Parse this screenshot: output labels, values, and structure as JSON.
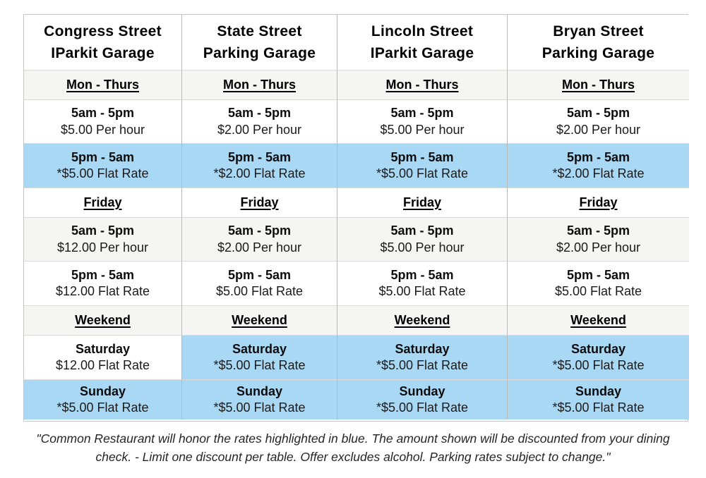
{
  "colors": {
    "highlight_blue": "#a9d8f5",
    "row_gray": "#f5f5f4",
    "border_gray": "#c6c6c6"
  },
  "table": {
    "rows": [
      {
        "type": "garage-header",
        "cells": [
          {
            "line1": "Congress Street",
            "line2": "IParkit Garage"
          },
          {
            "line1": "State Street",
            "line2": "Parking Garage"
          },
          {
            "line1": "Lincoln Street",
            "line2": "IParkit Garage"
          },
          {
            "line1": "Bryan Street",
            "line2": "Parking Garage"
          }
        ]
      },
      {
        "type": "section",
        "cells": [
          {
            "label": "Mon - Thurs"
          },
          {
            "label": "Mon - Thurs"
          },
          {
            "label": "Mon - Thurs"
          },
          {
            "label": "Mon - Thurs"
          }
        ]
      },
      {
        "type": "data",
        "cells": [
          {
            "line1": "5am - 5pm",
            "line2": "$5.00 Per hour"
          },
          {
            "line1": "5am - 5pm",
            "line2": "$2.00 Per hour"
          },
          {
            "line1": "5am - 5pm",
            "line2": "$5.00 Per hour"
          },
          {
            "line1": "5am - 5pm",
            "line2": "$2.00 Per hour"
          }
        ]
      },
      {
        "type": "data-highlighted",
        "cells": [
          {
            "line1": "5pm - 5am",
            "line2": "*$5.00 Flat Rate"
          },
          {
            "line1": "5pm - 5am",
            "line2": "*$2.00 Flat Rate"
          },
          {
            "line1": "5pm - 5am",
            "line2": "*$5.00 Flat Rate"
          },
          {
            "line1": "5pm - 5am",
            "line2": "*$2.00 Flat Rate"
          }
        ]
      },
      {
        "type": "section",
        "cells": [
          {
            "label": "Friday"
          },
          {
            "label": "Friday"
          },
          {
            "label": "Friday"
          },
          {
            "label": "Friday"
          }
        ]
      },
      {
        "type": "data",
        "cells": [
          {
            "line1": "5am - 5pm",
            "line2": "$12.00 Per hour"
          },
          {
            "line1": "5am - 5pm",
            "line2": "$2.00 Per hour"
          },
          {
            "line1": "5am - 5pm",
            "line2": "$5.00 Per hour"
          },
          {
            "line1": "5am - 5pm",
            "line2": "$2.00 Per hour"
          }
        ]
      },
      {
        "type": "data",
        "cells": [
          {
            "line1": "5pm - 5am",
            "line2": "$12.00 Flat Rate"
          },
          {
            "line1": "5pm - 5am",
            "line2": "$5.00 Flat Rate"
          },
          {
            "line1": "5pm - 5am",
            "line2": "$5.00 Flat Rate"
          },
          {
            "line1": "5pm - 5am",
            "line2": "$5.00 Flat Rate"
          }
        ]
      },
      {
        "type": "section",
        "cells": [
          {
            "label": "Weekend"
          },
          {
            "label": "Weekend"
          },
          {
            "label": "Weekend"
          },
          {
            "label": "Weekend"
          }
        ]
      },
      {
        "type": "data-mixed",
        "cells": [
          {
            "line1": "Saturday",
            "line2": "$12.00 Flat Rate"
          },
          {
            "line1": "Saturday",
            "line2": "*$5.00 Flat Rate"
          },
          {
            "line1": "Saturday",
            "line2": "*$5.00 Flat Rate"
          },
          {
            "line1": "Saturday",
            "line2": "*$5.00 Flat Rate"
          }
        ]
      },
      {
        "type": "data-highlighted",
        "cells": [
          {
            "line1": "Sunday",
            "line2": "*$5.00 Flat Rate"
          },
          {
            "line1": "Sunday",
            "line2": "*$5.00 Flat Rate"
          },
          {
            "line1": "Sunday",
            "line2": "*$5.00 Flat Rate"
          },
          {
            "line1": "Sunday",
            "line2": "*$5.00 Flat Rate"
          }
        ]
      }
    ]
  },
  "footer": {
    "quote": "\"Common Restaurant will honor the rates highlighted in blue. The amount shown will be discounted from your dining check. - Limit one discount per table. Offer excludes alcohol. Parking rates subject to change.\""
  }
}
